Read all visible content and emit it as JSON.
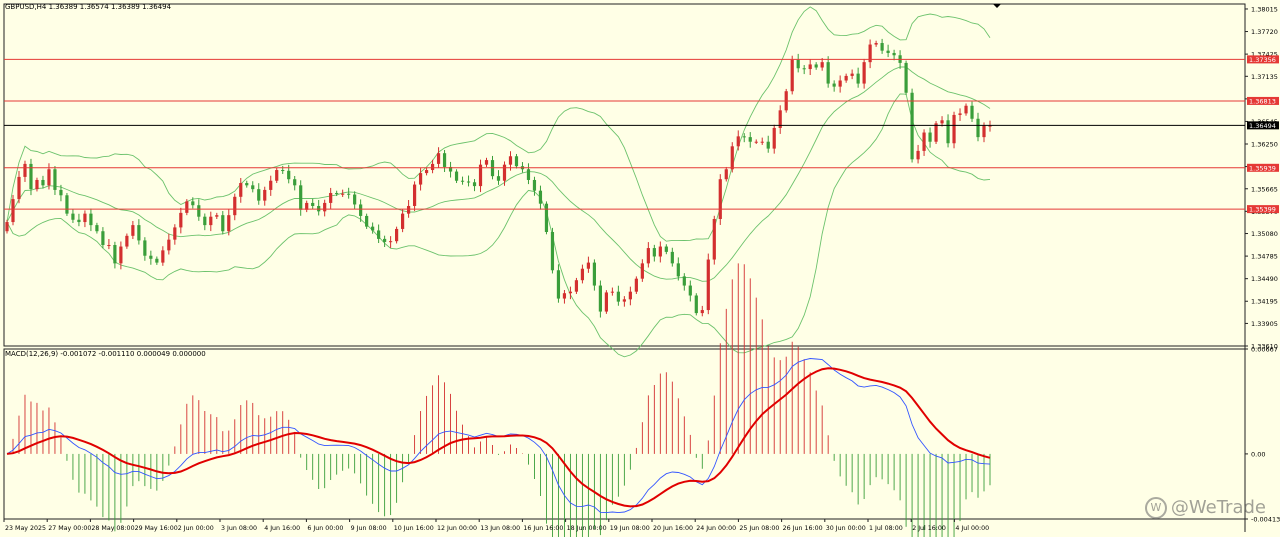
{
  "header": {
    "symbol": "GBPUSD,H4",
    "ohlc": "1.36389 1.36574 1.36389 1.36494",
    "macd_label": "MACD(12,26,9) -0.001072 -0.001110 0.000049 0.000000"
  },
  "watermark": {
    "text": "@WeTrade"
  },
  "colors": {
    "background": "#ffffe6",
    "bull": "#d32f2f",
    "bear": "#3a9e3a",
    "band": "#6cc26c",
    "level": "#e53935",
    "current": "#000000",
    "macd_main": "#3355ff",
    "macd_signal": "#e00000"
  },
  "chart_data": [
    {
      "type": "candlestick",
      "symbol": "GBPUSD",
      "timeframe": "H4",
      "ylim": [
        1.3361,
        1.3808
      ],
      "y_ticks": [
        "1.38015",
        "1.37720",
        "1.37425",
        "1.37135",
        "1.36840",
        "1.36545",
        "1.36250",
        "1.35955",
        "1.35665",
        "1.35370",
        "1.35080",
        "1.34785",
        "1.34490",
        "1.34195",
        "1.33905",
        "1.33610"
      ],
      "x_labels": [
        "23 May 2025",
        "27 May 00:00",
        "28 May 08:00",
        "29 May 16:00",
        "2 Jun 00:00",
        "3 Jun 08:00",
        "4 Jun 16:00",
        "6 Jun 00:00",
        "9 Jun 08:00",
        "10 Jun 16:00",
        "12 Jun 00:00",
        "13 Jun 08:00",
        "16 Jun 16:00",
        "18 Jun 00:00",
        "19 Jun 08:00",
        "20 Jun 16:00",
        "24 Jun 00:00",
        "25 Jun 08:00",
        "26 Jun 16:00",
        "30 Jun 00:00",
        "1 Jul 08:00",
        "2 Jul 16:00",
        "4 Jul 00:00"
      ],
      "levels": [
        {
          "value": "1.37356",
          "price": 1.37356
        },
        {
          "value": "1.36813",
          "price": 1.36813
        },
        {
          "value": "1.35939",
          "price": 1.35939
        },
        {
          "value": "1.35399",
          "price": 1.35399
        }
      ],
      "current_price": {
        "value": "1.36494",
        "price": 1.36494
      },
      "indicators": [
        "Bollinger Bands"
      ],
      "close": [
        1.3523,
        1.3553,
        1.3582,
        1.3599,
        1.3566,
        1.3578,
        1.3571,
        1.3592,
        1.3565,
        1.3558,
        1.3534,
        1.3526,
        1.3523,
        1.3534,
        1.3519,
        1.3511,
        1.3493,
        1.3493,
        1.3469,
        1.3491,
        1.3505,
        1.3519,
        1.3499,
        1.3479,
        1.3475,
        1.347,
        1.3486,
        1.35,
        1.3516,
        1.3535,
        1.355,
        1.3545,
        1.353,
        1.3519,
        1.353,
        1.3532,
        1.3511,
        1.3532,
        1.3556,
        1.3574,
        1.3571,
        1.3566,
        1.3551,
        1.3565,
        1.3577,
        1.3591,
        1.359,
        1.3579,
        1.3571,
        1.3539,
        1.3548,
        1.3544,
        1.3537,
        1.3548,
        1.3561,
        1.356,
        1.356,
        1.3559,
        1.3546,
        1.3531,
        1.3517,
        1.3512,
        1.3501,
        1.3497,
        1.3498,
        1.3514,
        1.3534,
        1.3544,
        1.3572,
        1.3587,
        1.3591,
        1.3599,
        1.3613,
        1.3595,
        1.3589,
        1.3577,
        1.3576,
        1.3575,
        1.357,
        1.3598,
        1.3604,
        1.3583,
        1.3577,
        1.3598,
        1.3609,
        1.3596,
        1.3592,
        1.3578,
        1.3564,
        1.3547,
        1.351,
        1.346,
        1.3423,
        1.343,
        1.3432,
        1.3447,
        1.3462,
        1.347,
        1.344,
        1.3406,
        1.3431,
        1.3432,
        1.3419,
        1.3422,
        1.3432,
        1.3449,
        1.3469,
        1.3489,
        1.3478,
        1.3491,
        1.3484,
        1.3469,
        1.3452,
        1.344,
        1.3427,
        1.3404,
        1.3408,
        1.3474,
        1.3527,
        1.3579,
        1.3592,
        1.3622,
        1.3635,
        1.3634,
        1.3628,
        1.3628,
        1.3628,
        1.3619,
        1.3646,
        1.3669,
        1.3694,
        1.3735,
        1.3724,
        1.3723,
        1.3729,
        1.3725,
        1.3732,
        1.3704,
        1.37,
        1.3708,
        1.3714,
        1.3717,
        1.3704,
        1.3732,
        1.3755,
        1.3757,
        1.3747,
        1.3744,
        1.3741,
        1.3731,
        1.3692,
        1.3605,
        1.3616,
        1.364,
        1.3628,
        1.3652,
        1.3656,
        1.3626,
        1.3663,
        1.3665,
        1.3675,
        1.3658,
        1.3634,
        1.3649,
        1.3649
      ]
    },
    {
      "type": "line",
      "name": "MACD(12,26,9)",
      "values_label": "-0.001072 -0.001110 0.000049 0.000000",
      "ylim": [
        -0.004139,
        0.00667
      ],
      "y_ticks": [
        "0.00667",
        "0.00",
        "-0.004139"
      ]
    }
  ]
}
